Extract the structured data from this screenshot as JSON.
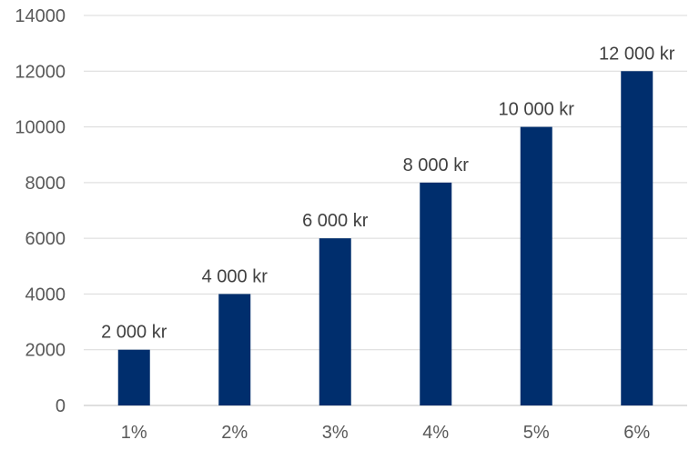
{
  "chart_data": {
    "type": "bar",
    "title": "",
    "xlabel": "",
    "ylabel": "",
    "categories": [
      "1%",
      "2%",
      "3%",
      "4%",
      "5%",
      "6%"
    ],
    "values": [
      2000,
      4000,
      6000,
      8000,
      10000,
      12000
    ],
    "data_labels": [
      "2 000 kr",
      "4 000 kr",
      "6 000 kr",
      "8 000 kr",
      "10 000 kr",
      "12 000 kr"
    ],
    "ylim": [
      0,
      14000
    ],
    "yticks": [
      0,
      2000,
      4000,
      6000,
      8000,
      10000,
      12000,
      14000
    ],
    "ytick_labels": [
      "0",
      "2000",
      "4000",
      "6000",
      "8000",
      "10000",
      "12000",
      "14000"
    ],
    "grid": true,
    "legend": "none",
    "bar_color": "#002e6d",
    "grid_color": "#d9d9d9"
  }
}
